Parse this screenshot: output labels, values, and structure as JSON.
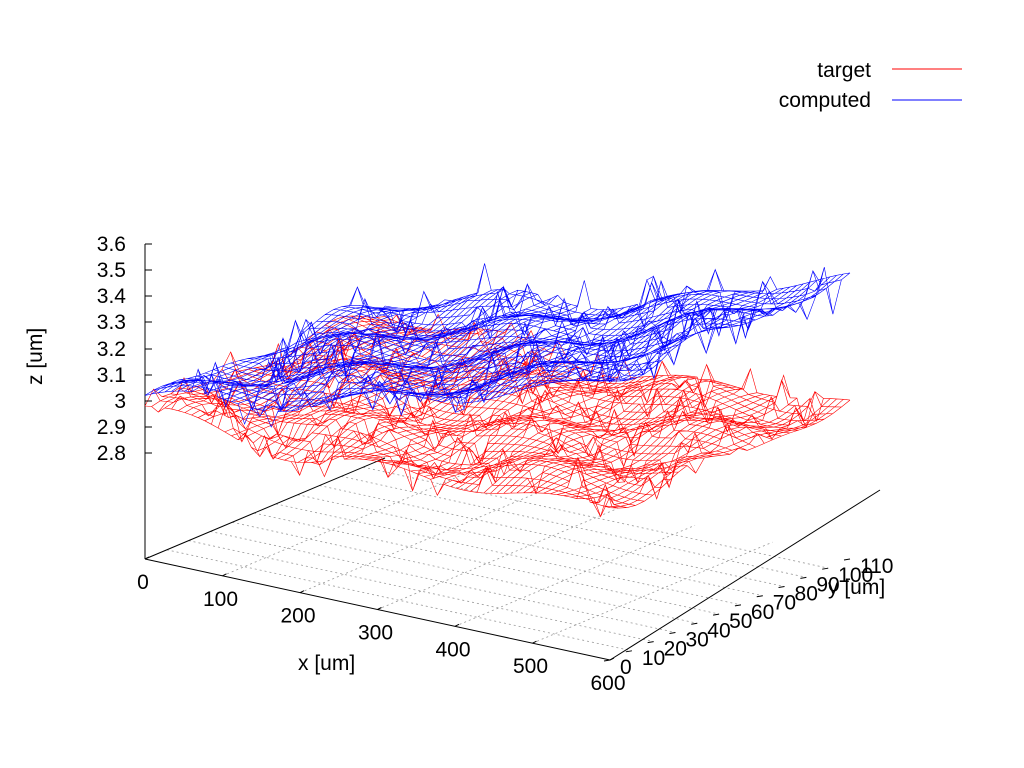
{
  "chart_data": {
    "type": "surface3d",
    "xlabel": "x [um]",
    "ylabel": "y [um]",
    "zlabel": "z [um]",
    "xlim": [
      0,
      600
    ],
    "ylim": [
      0,
      110
    ],
    "zlim": [
      2.8,
      3.6
    ],
    "x_ticks": [
      "0",
      "100",
      "200",
      "300",
      "400",
      "500",
      "600"
    ],
    "y_ticks": [
      "0",
      "10",
      "20",
      "30",
      "40",
      "50",
      "60",
      "70",
      "80",
      "90",
      "100",
      "110"
    ],
    "z_ticks": [
      "3.6",
      "3.5",
      "3.4",
      "3.3",
      "3.2",
      "3.1",
      "3",
      "2.9",
      "2.8"
    ],
    "grid": true,
    "legend_position": "top-right",
    "series": [
      {
        "name": "target",
        "color": "#ff0000",
        "note_profile_z_at_x": {
          "x": [
            0,
            100,
            200,
            300,
            400,
            500,
            600
          ],
          "z": [
            3.0,
            2.98,
            2.96,
            2.96,
            2.98,
            3.0,
            3.02
          ]
        }
      },
      {
        "name": "computed",
        "color": "#0000ff",
        "note_profile_z_at_x": {
          "x": [
            0,
            100,
            200,
            300,
            400,
            500,
            600
          ],
          "z": [
            3.04,
            3.1,
            3.16,
            3.22,
            3.3,
            3.4,
            3.5
          ]
        }
      }
    ]
  }
}
